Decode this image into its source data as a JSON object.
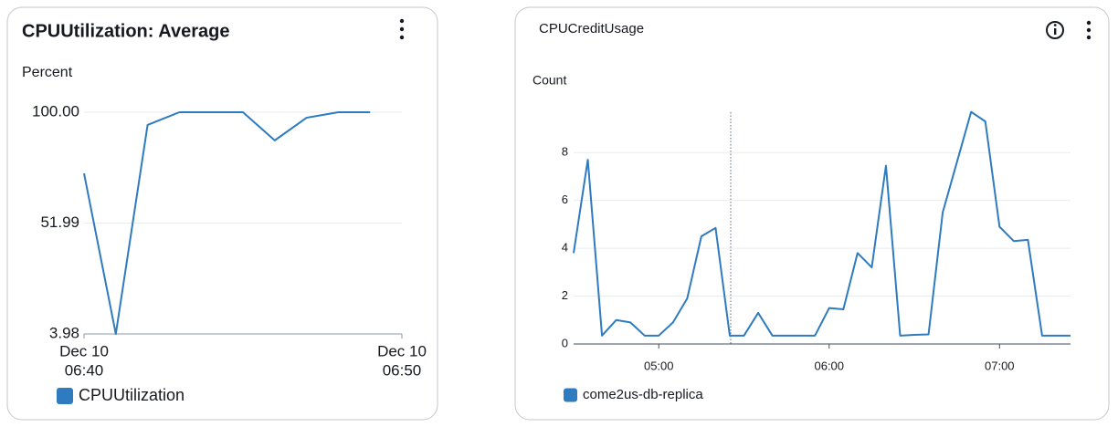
{
  "chart_data": [
    {
      "type": "line",
      "title": "CPUUtilization: Average",
      "y_label": "Percent",
      "x": [
        "06:40",
        "06:41",
        "06:42",
        "06:43",
        "06:44",
        "06:45",
        "06:46",
        "06:47",
        "06:48",
        "06:49"
      ],
      "series": [
        {
          "name": "CPUUtilization",
          "color": "#2e7bbf",
          "values": [
            73.5,
            3.98,
            94.5,
            100,
            100,
            100,
            87.8,
            97.6,
            100,
            100
          ]
        }
      ],
      "xlim": [
        "06:40",
        "06:50"
      ],
      "xticks": [
        {
          "value": "06:40",
          "label": [
            "Dec 10",
            "06:40"
          ]
        },
        {
          "value": "06:50",
          "label": [
            "Dec 10",
            "06:50"
          ]
        }
      ],
      "ylim": [
        3.98,
        100
      ],
      "yticks": [
        3.98,
        51.99,
        {
          "value": 100,
          "label": "100.00"
        }
      ],
      "grid": true
    },
    {
      "type": "line",
      "title": "CPUCreditUsage",
      "y_label": "Count",
      "x": [
        "04:30",
        "04:35",
        "04:40",
        "04:45",
        "04:50",
        "04:55",
        "05:00",
        "05:05",
        "05:10",
        "05:15",
        "05:20",
        "05:25",
        "05:30",
        "05:35",
        "05:40",
        "05:45",
        "05:50",
        "05:55",
        "06:00",
        "06:05",
        "06:10",
        "06:15",
        "06:20",
        "06:25",
        "06:30",
        "06:35",
        "06:40",
        "06:45",
        "06:50",
        "06:55",
        "07:00",
        "07:05",
        "07:10",
        "07:15",
        "07:20",
        "07:25"
      ],
      "series": [
        {
          "name": "come2us-db-replica",
          "color": "#2e7bbf",
          "values": [
            3.8,
            7.7,
            0.35,
            1.0,
            0.9,
            0.35,
            0.35,
            0.9,
            1.9,
            4.5,
            4.85,
            0.35,
            0.35,
            1.3,
            0.35,
            0.35,
            0.35,
            0.35,
            1.5,
            1.45,
            3.8,
            3.2,
            7.45,
            0.35,
            0.38,
            0.4,
            5.5,
            7.6,
            9.7,
            9.3,
            4.9,
            4.3,
            4.35,
            0.35,
            0.35,
            0.35
          ]
        }
      ],
      "xlim": [
        "04:30",
        "07:25"
      ],
      "xticks": [
        "05:00",
        "06:00",
        "07:00"
      ],
      "ylim": [
        0,
        9.8
      ],
      "yticks": [
        0,
        2,
        4,
        6,
        8
      ],
      "grid": true
    }
  ]
}
